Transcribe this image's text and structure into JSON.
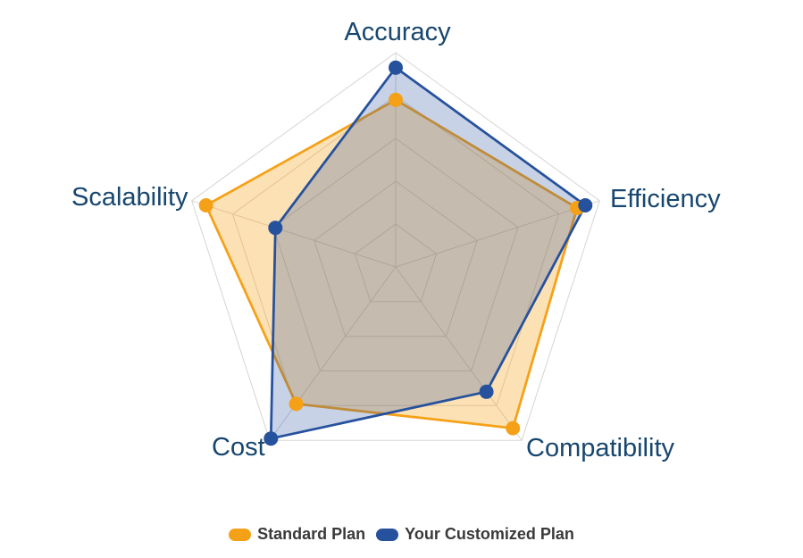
{
  "page": {
    "background": "#ffffff"
  },
  "chart_data": {
    "type": "radar",
    "title": "",
    "categories": [
      "Accuracy",
      "Efficiency",
      "Compatibility",
      "Cost",
      "Scalability"
    ],
    "series": [
      {
        "name": "Standard Plan",
        "values": [
          78,
          89,
          93,
          79,
          93
        ],
        "color": "#F5A118",
        "fill_opacity": 0.32
      },
      {
        "name": "Your Customized Plan",
        "values": [
          93,
          93,
          72,
          99,
          59
        ],
        "color": "#26519D",
        "fill_opacity": 0.26
      }
    ],
    "axis_max": 100,
    "axis_min": 0,
    "rings": 5,
    "grid": "on",
    "grid_color": "#D8D5D0",
    "label_color": "#17466F",
    "legend_position": "bottom",
    "legend_text_color": "#3A3A3A",
    "marker_radius": 8,
    "line_width": 2.75
  }
}
